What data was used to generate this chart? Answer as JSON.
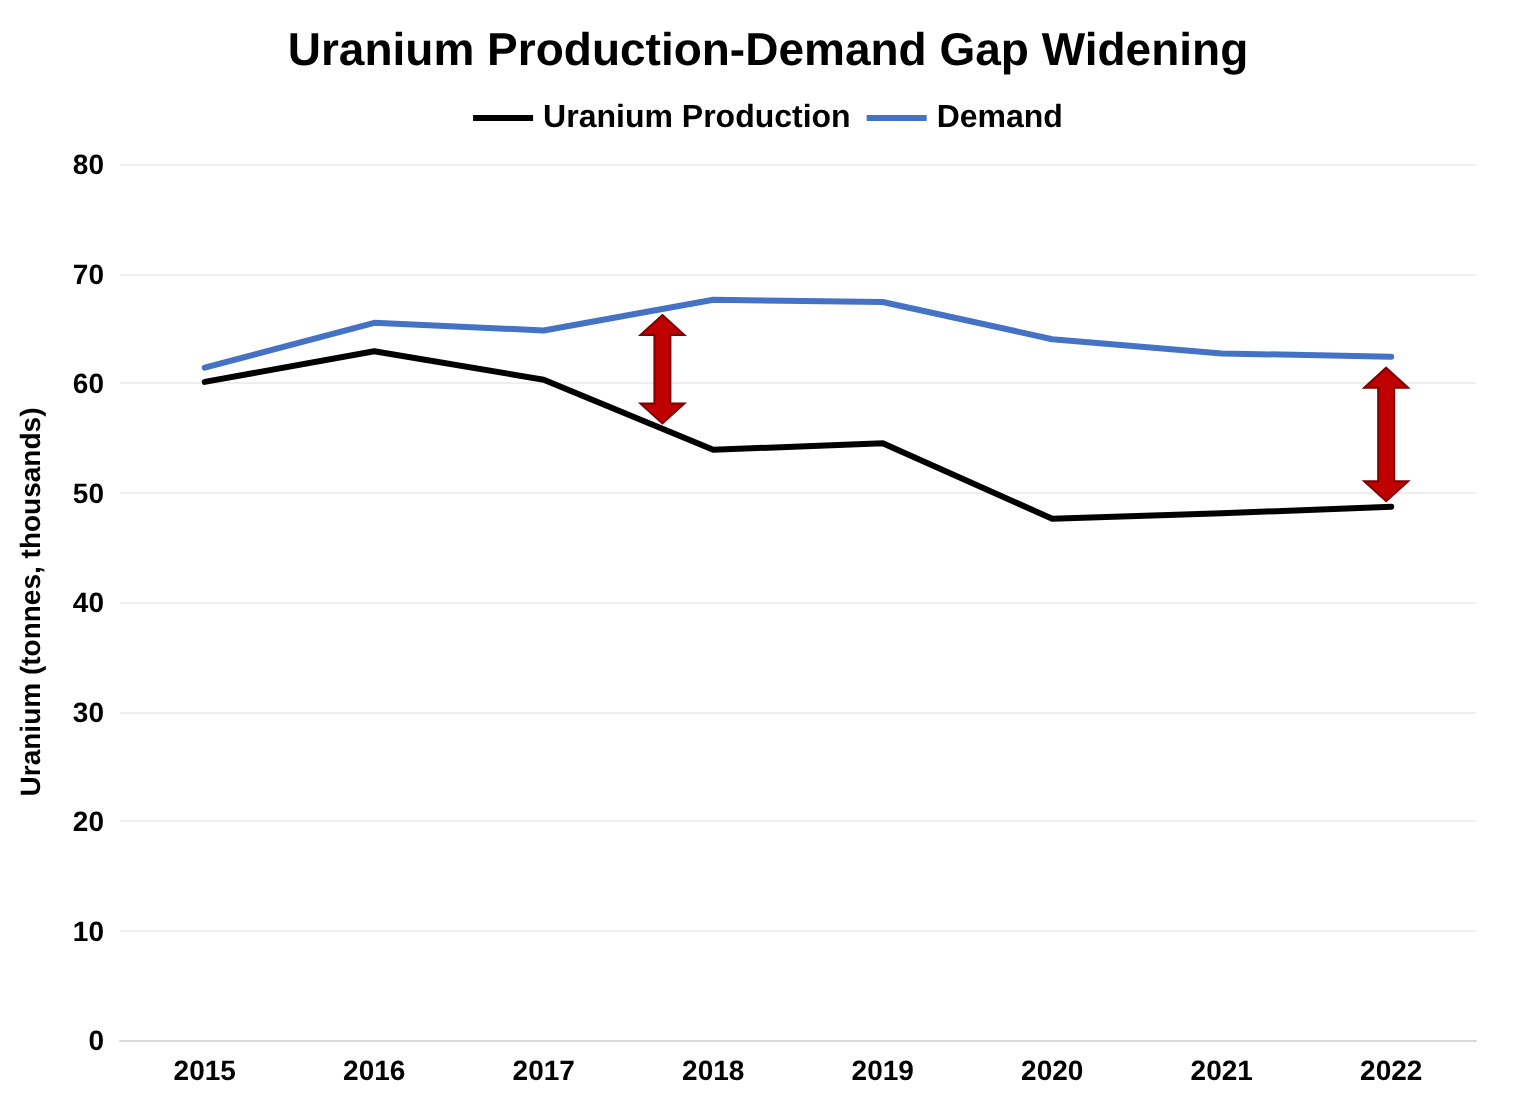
{
  "chart_data": {
    "type": "line",
    "title": "Uranium Production-Demand Gap Widening",
    "ylabel": "Uranium (tonnes, thousands)",
    "categories": [
      "2015",
      "2016",
      "2017",
      "2018",
      "2019",
      "2020",
      "2021",
      "2022"
    ],
    "series": [
      {
        "name": "Uranium Production",
        "color": "#000000",
        "values": [
          60.1,
          62.9,
          60.3,
          53.9,
          54.5,
          47.6,
          48.1,
          48.7
        ]
      },
      {
        "name": "Demand",
        "color": "#4472c4",
        "values": [
          61.4,
          65.5,
          64.8,
          67.6,
          67.4,
          64.0,
          62.7,
          62.4
        ]
      }
    ],
    "ylim": [
      0,
      80
    ],
    "yticks": [
      0,
      10,
      20,
      30,
      40,
      50,
      60,
      70,
      80
    ],
    "grid": "y",
    "legend": "top",
    "marker": "none",
    "line_style": "solid"
  }
}
